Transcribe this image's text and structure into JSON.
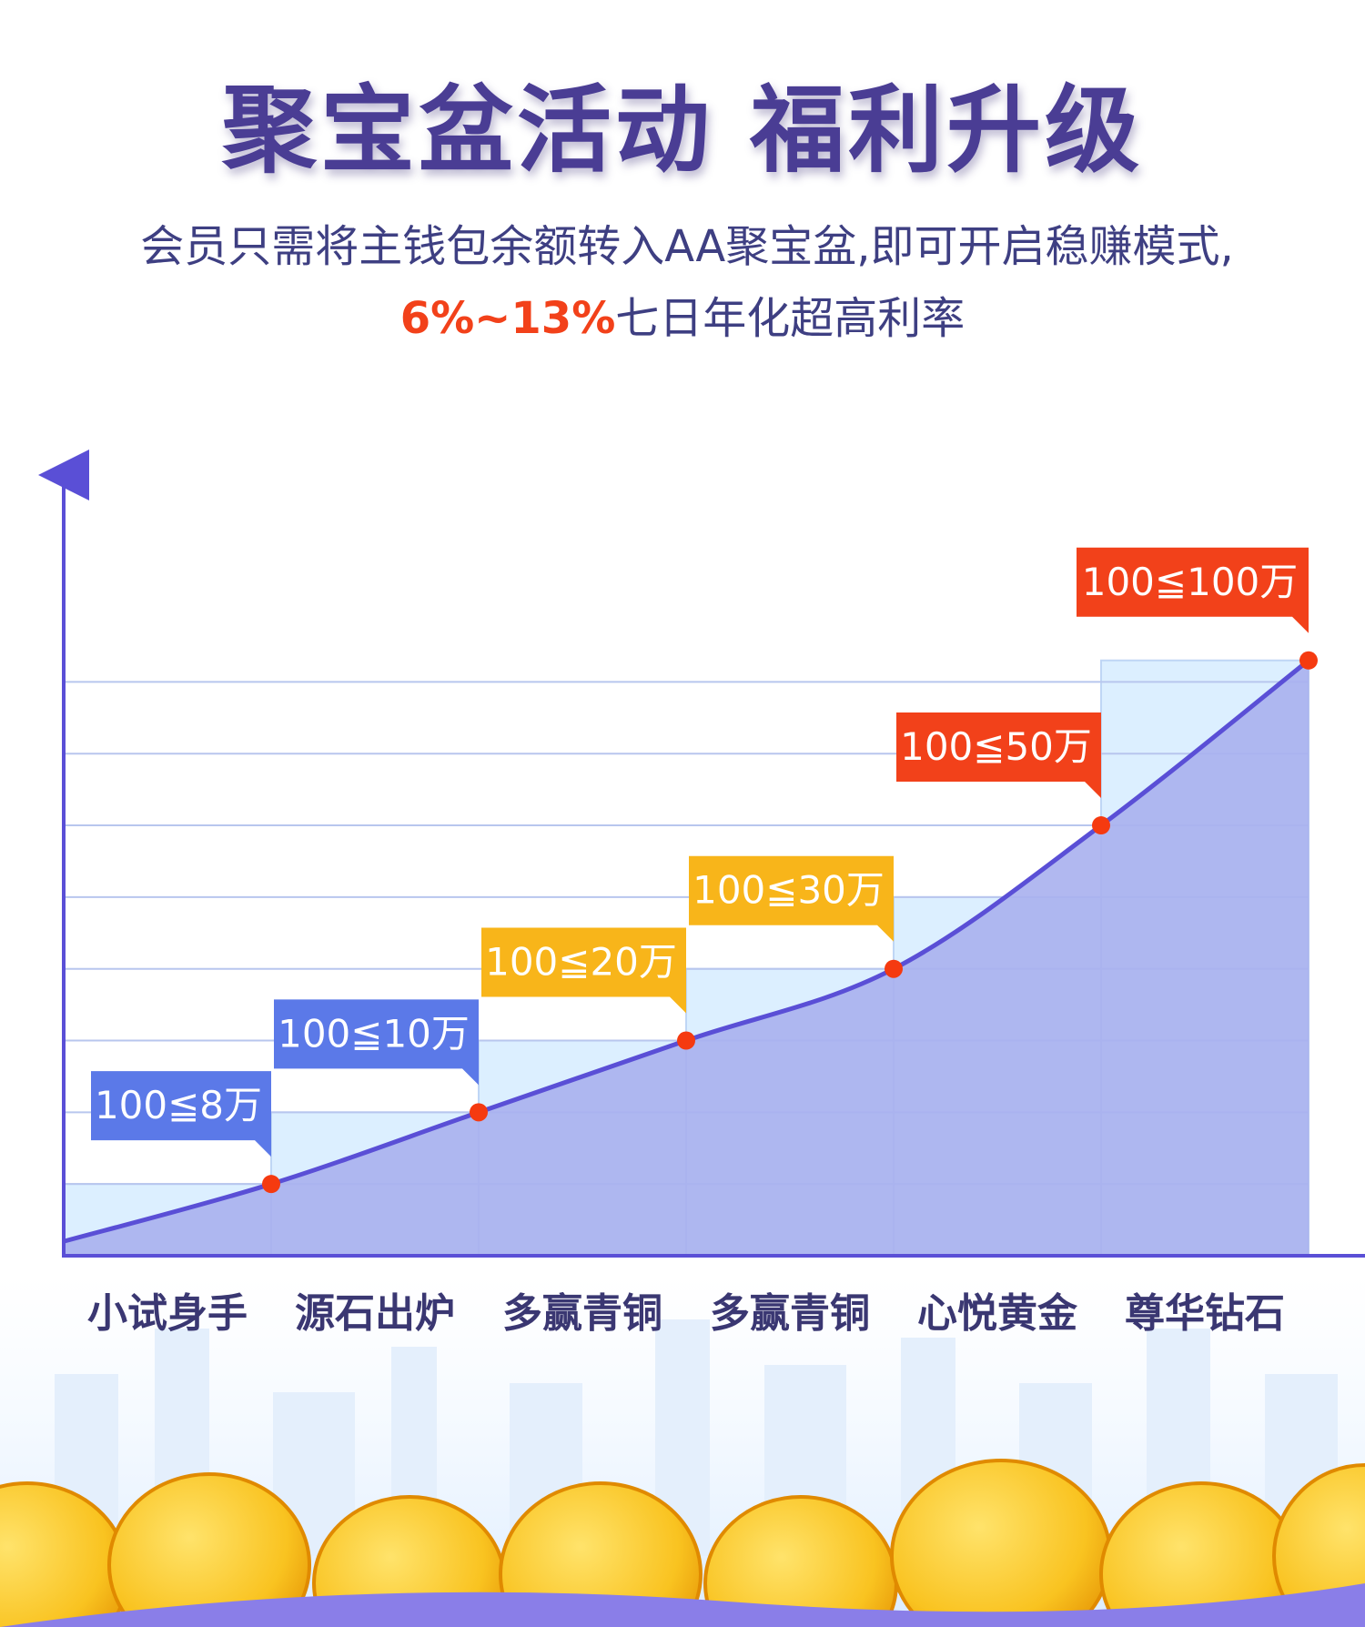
{
  "header": {
    "title": "聚宝盆活动  福利升级",
    "subtitle_line1": "会员只需将主钱包余额转入AA聚宝盆,即可开启稳赚模式,",
    "subtitle_rate": "6%~13%",
    "subtitle_line2_rest": "七日年化超高利率"
  },
  "colors": {
    "title": "#4a3d94",
    "text": "#3e3f82",
    "rate": "#f2411a",
    "line": "#5a4fd6",
    "area": "#a9b0ee",
    "step_fill": "#dcefff",
    "point": "#f53a10",
    "tag_blue": "#5b79e8",
    "tag_yellow": "#f8b51a",
    "tag_red": "#f2411a"
  },
  "chart_data": {
    "type": "line",
    "title": "",
    "xlabel": "",
    "ylabel": "",
    "categories": [
      "小试身手",
      "源石出炉",
      "多赢青铜",
      "多赢青铜",
      "心悦黄金",
      "尊华钻石"
    ],
    "tags": [
      "100≦8万",
      "100≦10万",
      "100≦20万",
      "100≦30万",
      "100≦50万",
      "100≦100万"
    ],
    "tag_colors": [
      "blue",
      "blue",
      "yellow",
      "yellow",
      "red",
      "red"
    ],
    "points": [
      1,
      2,
      3,
      4,
      6,
      8.3
    ],
    "steps": [
      1,
      2,
      3,
      4,
      5,
      8.3
    ],
    "ylim": [
      0,
      8.5
    ],
    "grid": true
  }
}
